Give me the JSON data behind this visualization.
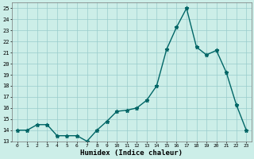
{
  "x": [
    0,
    1,
    2,
    3,
    4,
    5,
    6,
    7,
    8,
    9,
    10,
    11,
    12,
    13,
    14,
    15,
    16,
    17,
    18,
    19,
    20,
    21,
    22,
    23
  ],
  "y": [
    14,
    14,
    14.5,
    14.5,
    13.5,
    13.5,
    13.5,
    13,
    14,
    14.8,
    15.7,
    15.8,
    16,
    16.7,
    18,
    21.3,
    23.3,
    25,
    21.5,
    20.8,
    21.2,
    19.2,
    16.3,
    14
  ],
  "xlabel": "Humidex (Indice chaleur)",
  "ylabel": "",
  "ylim": [
    13,
    25.5
  ],
  "xlim": [
    -0.5,
    23.5
  ],
  "yticks": [
    13,
    14,
    15,
    16,
    17,
    18,
    19,
    20,
    21,
    22,
    23,
    24,
    25
  ],
  "xticks": [
    0,
    1,
    2,
    3,
    4,
    5,
    6,
    7,
    8,
    9,
    10,
    11,
    12,
    13,
    14,
    15,
    16,
    17,
    18,
    19,
    20,
    21,
    22,
    23
  ],
  "line_color": "#006666",
  "marker": "*",
  "bg_color": "#cceee8",
  "grid_color": "#99cccc",
  "marker_size": 3.5,
  "line_width": 1.0
}
